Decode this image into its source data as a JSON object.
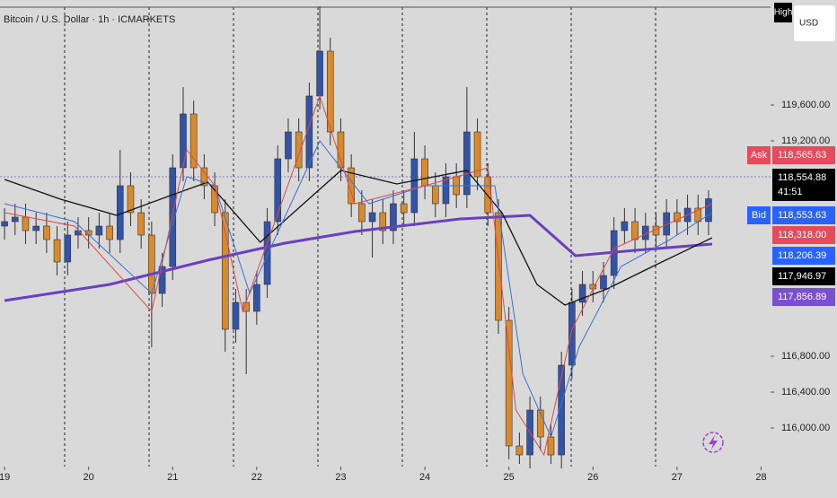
{
  "chart_data": {
    "type": "candlestick",
    "title": "Bitcoin / U.S. Dollar · 1h · ICMARKETS",
    "currency": "USD",
    "high_label": "High",
    "up_color": "#3354a6",
    "down_color": "#d98b2b",
    "xlim": [
      -1.3,
      218.7
    ],
    "ylim": [
      115570,
      120770
    ],
    "xticks": [
      {
        "value": 0,
        "label": "19"
      },
      {
        "value": 24,
        "label": "20"
      },
      {
        "value": 48,
        "label": "21"
      },
      {
        "value": 72,
        "label": "22"
      },
      {
        "value": 96,
        "label": "23"
      },
      {
        "value": 120,
        "label": "24"
      },
      {
        "value": 144,
        "label": "25"
      },
      {
        "value": 168,
        "label": "26"
      },
      {
        "value": 192,
        "label": "27"
      },
      {
        "value": 216,
        "label": "28"
      }
    ],
    "yticks": [
      {
        "value": 116000,
        "label": "116,000.00"
      },
      {
        "value": 116400,
        "label": "116,400.00"
      },
      {
        "value": 116800,
        "label": "116,800.00"
      },
      {
        "value": 119200,
        "label": "119,200.00"
      },
      {
        "value": 119600,
        "label": "119,600.00"
      }
    ],
    "x": [
      0,
      3,
      6,
      9,
      12,
      15,
      18,
      21,
      24,
      27,
      30,
      33,
      36,
      39,
      42,
      45,
      48,
      51,
      54,
      57,
      60,
      63,
      66,
      69,
      72,
      75,
      78,
      81,
      84,
      87,
      90,
      93,
      96,
      99,
      102,
      105,
      108,
      111,
      114,
      117,
      120,
      123,
      126,
      129,
      132,
      135,
      138,
      141,
      144,
      147,
      150,
      153,
      156,
      159,
      162,
      165,
      168,
      171,
      174,
      177,
      180,
      183,
      186,
      189,
      192,
      195,
      198,
      201
    ],
    "open": [
      118250,
      118300,
      118350,
      118200,
      118250,
      118100,
      117850,
      118150,
      118200,
      118150,
      118250,
      118100,
      118700,
      118400,
      118150,
      117500,
      117800,
      118900,
      119500,
      118900,
      118700,
      118400,
      117100,
      117400,
      117300,
      117600,
      118300,
      119000,
      119300,
      118900,
      119700,
      120200,
      119300,
      118900,
      118500,
      118300,
      118400,
      118200,
      118500,
      118400,
      119000,
      118700,
      118500,
      118800,
      118600,
      119300,
      118800,
      118400,
      117200,
      115800,
      115700,
      116200,
      115900,
      115700,
      116700,
      117400,
      117600,
      117550,
      117700,
      118200,
      118300,
      118100,
      118250,
      118150,
      118400,
      118300,
      118450,
      118300
    ],
    "high": [
      118450,
      118500,
      118500,
      118400,
      118400,
      118250,
      118300,
      118350,
      118350,
      118400,
      118400,
      119100,
      118850,
      118550,
      118300,
      117950,
      119050,
      119800,
      119650,
      119050,
      118850,
      118550,
      117550,
      117550,
      117750,
      118450,
      119150,
      119450,
      119450,
      119850,
      120700,
      120350,
      119450,
      119050,
      118650,
      118550,
      118550,
      118650,
      118650,
      119300,
      119150,
      118850,
      118950,
      118950,
      119800,
      119450,
      118950,
      118550,
      117350,
      115950,
      116350,
      116350,
      116050,
      116850,
      117550,
      117750,
      117750,
      117850,
      118350,
      118450,
      118450,
      118400,
      118400,
      118550,
      118550,
      118600,
      118600,
      118650
    ],
    "low": [
      118100,
      118150,
      118050,
      118050,
      117950,
      117700,
      117700,
      118000,
      118000,
      118000,
      117950,
      117950,
      118250,
      118000,
      116900,
      117350,
      117650,
      118750,
      118750,
      118550,
      118250,
      116850,
      116950,
      116600,
      117150,
      117450,
      118150,
      118850,
      118750,
      118750,
      119550,
      119150,
      118750,
      118350,
      118150,
      117900,
      118050,
      118050,
      118250,
      118250,
      118550,
      118350,
      118350,
      118450,
      118450,
      118650,
      118250,
      117050,
      115650,
      115600,
      115550,
      115750,
      115600,
      115550,
      116550,
      117250,
      117400,
      117400,
      117550,
      118050,
      117950,
      117950,
      118000,
      118000,
      118150,
      118150,
      118150,
      118150
    ],
    "close": [
      118300,
      118350,
      118200,
      118250,
      118100,
      117850,
      118150,
      118200,
      118150,
      118250,
      118100,
      118700,
      118400,
      118150,
      117500,
      117800,
      118900,
      119500,
      118900,
      118700,
      118400,
      117100,
      117400,
      117300,
      117600,
      118300,
      119000,
      119300,
      118900,
      119700,
      120200,
      119300,
      118900,
      118500,
      118300,
      118400,
      118200,
      118500,
      118400,
      119000,
      118700,
      118500,
      118800,
      118600,
      119300,
      118800,
      118400,
      117200,
      115800,
      115700,
      116200,
      115900,
      115700,
      116700,
      117400,
      117600,
      117550,
      117700,
      118200,
      118300,
      118100,
      118250,
      118150,
      118400,
      118300,
      118450,
      118300,
      118555
    ],
    "series": [
      {
        "color": "#6a3fc0",
        "width": 3,
        "x": [
          0,
          30,
          58,
          80,
          100,
          130,
          150,
          163,
          180,
          202
        ],
        "values": [
          117420,
          117600,
          117870,
          118060,
          118190,
          118330,
          118370,
          117920,
          117980,
          118050
        ]
      },
      {
        "color": "#111111",
        "width": 1.3,
        "x": [
          0,
          16,
          32,
          48,
          58,
          73,
          96,
          112,
          132,
          142,
          152,
          160,
          172,
          185,
          202
        ],
        "values": [
          118770,
          118550,
          118370,
          118600,
          118740,
          118070,
          118870,
          118720,
          118870,
          118400,
          117600,
          117370,
          117550,
          117800,
          118120
        ]
      },
      {
        "color": "#3c6fd8",
        "width": 1,
        "x": [
          0,
          20,
          42,
          52,
          60,
          70,
          90,
          104,
          120,
          140,
          148,
          156,
          164,
          176,
          190,
          202
        ],
        "values": [
          118500,
          118300,
          117500,
          118800,
          118700,
          117500,
          119200,
          118500,
          118700,
          118700,
          116600,
          115900,
          116900,
          117800,
          118100,
          118400
        ]
      },
      {
        "color": "#e04848",
        "width": 1,
        "x": [
          0,
          20,
          42,
          52,
          60,
          68,
          90,
          100,
          120,
          138,
          146,
          154,
          162,
          174,
          188,
          202
        ],
        "values": [
          118400,
          118250,
          117300,
          119100,
          118700,
          117300,
          119700,
          118500,
          118700,
          118900,
          116200,
          115700,
          117100,
          118000,
          118250,
          118500
        ]
      }
    ],
    "price_labels": [
      {
        "tag": "Ask",
        "text": "118,565.63",
        "color": "#e54b5c"
      },
      {
        "text": "118,554.88",
        "sub": "41:51",
        "color": "#000000"
      },
      {
        "tag": "Bid",
        "text": "118,553.63",
        "color": "#2962ff"
      },
      {
        "text": "118,318.00",
        "color": "#e54b5c"
      },
      {
        "text": "118,206.39",
        "color": "#2962ff"
      },
      {
        "text": "117,946.97",
        "color": "#000000"
      },
      {
        "text": "117,856.89",
        "color": "#7a4fd0"
      }
    ]
  }
}
